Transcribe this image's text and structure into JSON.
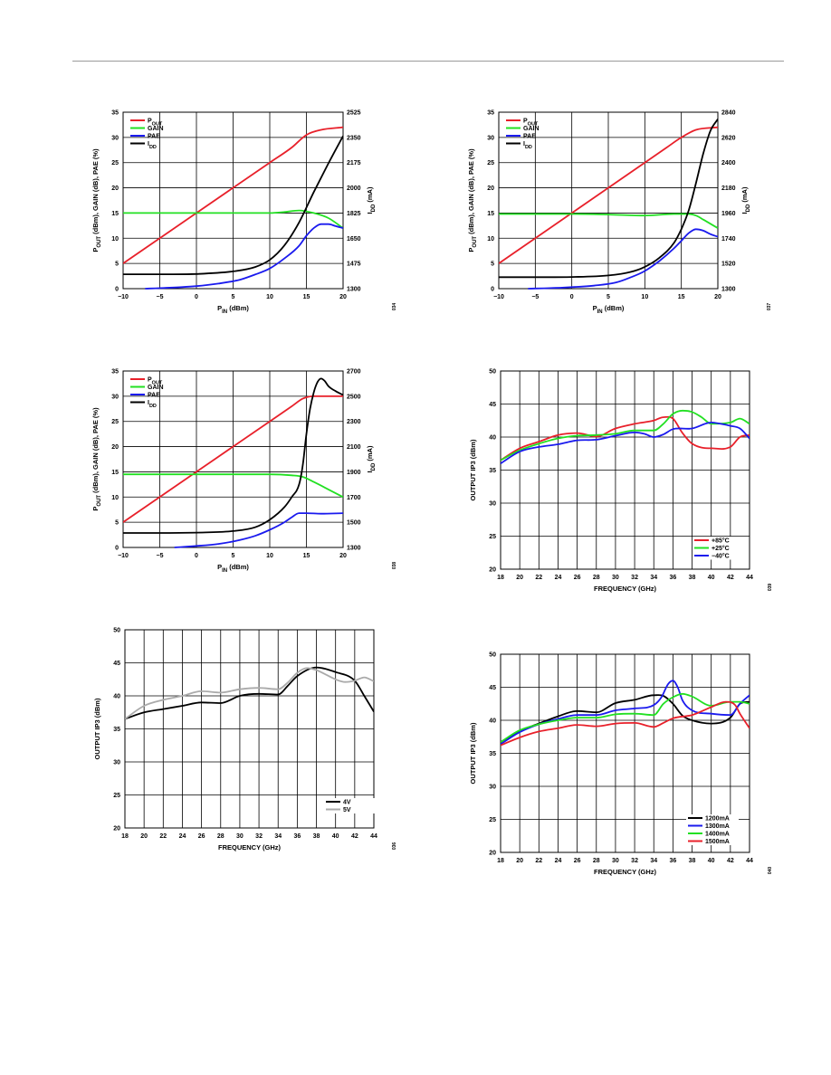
{
  "chart_data": [
    {
      "type": "line",
      "id": "c1",
      "title": "",
      "xlabel": "P_IN (dBm)",
      "ylabel": "P_OUT (dBm), GAIN (dB), PAE (%)",
      "ylabel2": "I_DD (mA)",
      "xlim": [
        -10,
        20
      ],
      "ylim": [
        0,
        35
      ],
      "ylim2": [
        1300,
        2525
      ],
      "x_ticks": [
        -10,
        -5,
        0,
        5,
        10,
        15,
        20
      ],
      "x_tick_labels": [
        "−10",
        "−5",
        "0",
        "5",
        "10",
        "15",
        "20"
      ],
      "y_ticks": [
        0,
        5,
        10,
        15,
        20,
        25,
        30,
        35
      ],
      "y_tick_labels": [
        "0",
        "5",
        "10",
        "15",
        "20",
        "25",
        "30",
        "35"
      ],
      "y2_ticks": [
        1300,
        1475,
        1650,
        1825,
        2000,
        2175,
        2350,
        2525
      ],
      "y2_tick_labels": [
        "1300",
        "1475",
        "1650",
        "1825",
        "2000",
        "2175",
        "2350",
        "2525"
      ],
      "grid": true,
      "legend_position": "top-left",
      "figure_id": "034",
      "series": [
        {
          "name": "POUT",
          "color": "#e8202a",
          "axis": "left",
          "x": [
            -10,
            0,
            10,
            13,
            15,
            17,
            20
          ],
          "y": [
            5,
            15,
            25,
            28,
            30.5,
            31.5,
            32
          ]
        },
        {
          "name": "GAIN",
          "color": "#22e022",
          "axis": "left",
          "x": [
            -10,
            0,
            10,
            12,
            14,
            16,
            18,
            20
          ],
          "y": [
            15,
            15,
            15,
            15.2,
            15.5,
            15,
            14,
            12
          ]
        },
        {
          "name": "PAE",
          "color": "#1a1aee",
          "axis": "left",
          "x": [
            -7,
            -5,
            -2,
            0,
            3,
            6,
            8,
            10,
            12,
            14,
            15,
            16,
            17,
            18,
            19,
            20
          ],
          "y": [
            0,
            0.1,
            0.3,
            0.5,
            1,
            1.8,
            2.8,
            4,
            6,
            8.5,
            10.5,
            12,
            12.8,
            12.8,
            12.4,
            12
          ]
        },
        {
          "name": "IDD",
          "color": "#000000",
          "axis": "right",
          "x": [
            -10,
            -5,
            0,
            5,
            8,
            10,
            12,
            14,
            16,
            18,
            20
          ],
          "y": [
            1400,
            1400,
            1402,
            1420,
            1450,
            1500,
            1600,
            1760,
            1970,
            2170,
            2360
          ]
        }
      ]
    },
    {
      "type": "line",
      "id": "c2",
      "title": "",
      "xlabel": "P_IN (dBm)",
      "ylabel": "P_OUT (dBm), GAIN (dB), PAE (%)",
      "ylabel2": "I_DD (mA)",
      "xlim": [
        -10,
        20
      ],
      "ylim": [
        0,
        35
      ],
      "ylim2": [
        1300,
        2840
      ],
      "x_ticks": [
        -10,
        -5,
        0,
        5,
        10,
        15,
        20
      ],
      "x_tick_labels": [
        "−10",
        "−5",
        "0",
        "5",
        "10",
        "15",
        "20"
      ],
      "y_ticks": [
        0,
        5,
        10,
        15,
        20,
        25,
        30,
        35
      ],
      "y_tick_labels": [
        "0",
        "5",
        "10",
        "15",
        "20",
        "25",
        "30",
        "35"
      ],
      "y2_ticks": [
        1300,
        1520,
        1740,
        1960,
        2180,
        2400,
        2620,
        2840
      ],
      "y2_tick_labels": [
        "1300",
        "1520",
        "1740",
        "1960",
        "2180",
        "2400",
        "2620",
        "2840"
      ],
      "grid": true,
      "legend_position": "top-left",
      "figure_id": "037",
      "series": [
        {
          "name": "POUT",
          "color": "#e8202a",
          "axis": "left",
          "x": [
            -10,
            0,
            10,
            13,
            15,
            17,
            20
          ],
          "y": [
            5,
            15,
            25,
            28,
            30,
            31.5,
            32
          ]
        },
        {
          "name": "GAIN",
          "color": "#22e022",
          "axis": "left",
          "x": [
            -10,
            0,
            5,
            10,
            14,
            16,
            17,
            18,
            20
          ],
          "y": [
            14.8,
            14.8,
            14.7,
            14.5,
            14.8,
            14.8,
            14.5,
            13.7,
            12
          ]
        },
        {
          "name": "PAE",
          "color": "#1a1aee",
          "axis": "left",
          "x": [
            -6,
            -3,
            0,
            3,
            6,
            8,
            10,
            12,
            14,
            15,
            16,
            17,
            18,
            19,
            20
          ],
          "y": [
            0,
            0.1,
            0.3,
            0.6,
            1.2,
            2.2,
            3.5,
            5.5,
            8,
            9.5,
            11,
            11.8,
            11.5,
            10.8,
            10.3
          ]
        },
        {
          "name": "IDD",
          "color": "#000000",
          "axis": "right",
          "x": [
            -10,
            -5,
            0,
            5,
            8,
            10,
            12,
            14,
            15,
            16,
            17,
            18,
            19,
            20
          ],
          "y": [
            1400,
            1400,
            1402,
            1415,
            1445,
            1490,
            1570,
            1700,
            1820,
            1980,
            2220,
            2480,
            2680,
            2780
          ]
        }
      ]
    },
    {
      "type": "line",
      "id": "c3",
      "title": "",
      "xlabel": "P_IN (dBm)",
      "ylabel": "P_OUT (dBm), GAIN (dB), PAE (%)",
      "ylabel2": "I_DD (mA)",
      "xlim": [
        -10,
        20
      ],
      "ylim": [
        0,
        35
      ],
      "ylim2": [
        1300,
        2700
      ],
      "x_ticks": [
        -10,
        -5,
        0,
        5,
        10,
        15,
        20
      ],
      "x_tick_labels": [
        "−10",
        "−5",
        "0",
        "5",
        "10",
        "15",
        "20"
      ],
      "y_ticks": [
        0,
        5,
        10,
        15,
        20,
        25,
        30,
        35
      ],
      "y_tick_labels": [
        "0",
        "5",
        "10",
        "15",
        "20",
        "25",
        "30",
        "35"
      ],
      "y2_ticks": [
        1300,
        1500,
        1700,
        1900,
        2100,
        2300,
        2500,
        2700
      ],
      "y2_tick_labels": [
        "1300",
        "1500",
        "1700",
        "1900",
        "2100",
        "2300",
        "2500",
        "2700"
      ],
      "grid": true,
      "legend_position": "top-left",
      "figure_id": "038",
      "series": [
        {
          "name": "POUT",
          "color": "#e8202a",
          "axis": "left",
          "x": [
            -10,
            0,
            10,
            13,
            14.5,
            16,
            18,
            20
          ],
          "y": [
            5,
            15,
            25,
            28,
            29.5,
            30,
            30,
            30
          ]
        },
        {
          "name": "GAIN",
          "color": "#22e022",
          "axis": "left",
          "x": [
            -10,
            0,
            5,
            10,
            13,
            14.5,
            16,
            18,
            20
          ],
          "y": [
            14.5,
            14.5,
            14.5,
            14.5,
            14.3,
            14,
            13,
            11.5,
            10
          ]
        },
        {
          "name": "PAE",
          "color": "#1a1aee",
          "axis": "left",
          "x": [
            -3,
            0,
            3,
            6,
            8,
            10,
            12,
            13,
            14,
            15,
            17,
            20
          ],
          "y": [
            0,
            0.3,
            0.7,
            1.5,
            2.3,
            3.5,
            5,
            6,
            6.8,
            6.8,
            6.7,
            6.8
          ]
        },
        {
          "name": "IDD",
          "color": "#000000",
          "axis": "right",
          "x": [
            -10,
            -5,
            0,
            5,
            8,
            10,
            12,
            13,
            14,
            14.5,
            15,
            15.5,
            16,
            16.5,
            17,
            17.5,
            18,
            19,
            20
          ],
          "y": [
            1415,
            1415,
            1418,
            1430,
            1460,
            1520,
            1620,
            1700,
            1800,
            1950,
            2200,
            2400,
            2530,
            2610,
            2640,
            2620,
            2580,
            2540,
            2510
          ]
        }
      ]
    },
    {
      "type": "line",
      "id": "c4",
      "title": "",
      "xlabel": "FREQUENCY (GHz)",
      "ylabel": "OUTPUT IP3 (dBm)",
      "xlim": [
        18,
        44
      ],
      "ylim": [
        20,
        50
      ],
      "x_ticks": [
        18,
        20,
        22,
        24,
        26,
        28,
        30,
        32,
        34,
        36,
        38,
        40,
        42,
        44
      ],
      "x_tick_labels": [
        "18",
        "20",
        "22",
        "24",
        "26",
        "28",
        "30",
        "32",
        "34",
        "36",
        "38",
        "40",
        "42",
        "44"
      ],
      "y_ticks": [
        20,
        25,
        30,
        35,
        40,
        45,
        50
      ],
      "y_tick_labels": [
        "20",
        "25",
        "30",
        "35",
        "40",
        "45",
        "50"
      ],
      "grid": true,
      "legend_position": "bottom-right",
      "figure_id": "039",
      "series": [
        {
          "name": "+85°C",
          "color": "#e8202a",
          "x": [
            18,
            20,
            22,
            24,
            26,
            28,
            30,
            32,
            34,
            35,
            36,
            37,
            38,
            40,
            42,
            43,
            44
          ],
          "y": [
            36.5,
            38.3,
            39.3,
            40.3,
            40.6,
            40.1,
            41.3,
            42,
            42.5,
            43,
            42.8,
            40.6,
            39,
            38.3,
            38.5,
            40,
            40.3
          ]
        },
        {
          "name": "+25°C",
          "color": "#22e022",
          "x": [
            18,
            20,
            22,
            24,
            26,
            28,
            30,
            32,
            34,
            35,
            36,
            37,
            38,
            39,
            40,
            42,
            43,
            44
          ],
          "y": [
            36.5,
            38,
            39,
            39.8,
            40.2,
            40.3,
            40.5,
            41,
            41,
            42,
            43.5,
            44,
            43.8,
            43,
            42,
            42.2,
            42.8,
            42
          ]
        },
        {
          "name": "−40°C",
          "color": "#1a1aee",
          "x": [
            18,
            20,
            22,
            24,
            26,
            28,
            30,
            32,
            33,
            34,
            35,
            36,
            38,
            40,
            41,
            42,
            43,
            44
          ],
          "y": [
            36,
            37.8,
            38.5,
            38.9,
            39.5,
            39.6,
            40.2,
            40.7,
            40.5,
            40,
            40.4,
            41.2,
            41.3,
            42.2,
            42,
            41.7,
            41.3,
            39.8
          ]
        }
      ]
    },
    {
      "type": "line",
      "id": "c5",
      "title": "",
      "xlabel": "FREQUENCY (GHz)",
      "ylabel": "OUTPUT IP3 (dBm)",
      "xlim": [
        18,
        44
      ],
      "ylim": [
        20,
        50
      ],
      "x_ticks": [
        18,
        20,
        22,
        24,
        26,
        28,
        30,
        32,
        34,
        36,
        38,
        40,
        42,
        44
      ],
      "x_tick_labels": [
        "18",
        "20",
        "22",
        "24",
        "26",
        "28",
        "30",
        "32",
        "34",
        "36",
        "38",
        "40",
        "42",
        "44"
      ],
      "y_ticks": [
        20,
        25,
        30,
        35,
        40,
        45,
        50
      ],
      "y_tick_labels": [
        "20",
        "25",
        "30",
        "35",
        "40",
        "45",
        "50"
      ],
      "grid": true,
      "legend_position": "bottom-right",
      "figure_id": "036",
      "series": [
        {
          "name": "4V",
          "color": "#000000",
          "x": [
            18,
            20,
            22,
            24,
            26,
            28,
            30,
            32,
            34,
            35,
            36,
            38,
            40,
            42,
            43,
            44
          ],
          "y": [
            36.5,
            37.5,
            38,
            38.5,
            39,
            38.9,
            40,
            40.3,
            40.2,
            41.5,
            43,
            44.3,
            43.6,
            42.3,
            40,
            37.6
          ]
        },
        {
          "name": "5V",
          "color": "#aaaaaa",
          "x": [
            18,
            20,
            22,
            24,
            26,
            28,
            30,
            32,
            34,
            35,
            36,
            37,
            38,
            39,
            40,
            41,
            42,
            43,
            44
          ],
          "y": [
            36.5,
            38.5,
            39.4,
            40,
            40.7,
            40.5,
            41,
            41.2,
            41,
            42,
            43.5,
            44.2,
            43.9,
            43.2,
            42.5,
            42.1,
            42.3,
            42.8,
            42.2
          ]
        }
      ]
    },
    {
      "type": "line",
      "id": "c6",
      "title": "",
      "xlabel": "FREQUENCY (GHz)",
      "ylabel": "OUTPUT IP3 (dBm)",
      "xlim": [
        18,
        44
      ],
      "ylim": [
        20,
        50
      ],
      "x_ticks": [
        18,
        20,
        22,
        24,
        26,
        28,
        30,
        32,
        34,
        36,
        38,
        40,
        42,
        44
      ],
      "x_tick_labels": [
        "18",
        "20",
        "22",
        "24",
        "26",
        "28",
        "30",
        "32",
        "34",
        "36",
        "38",
        "40",
        "42",
        "44"
      ],
      "y_ticks": [
        20,
        25,
        30,
        35,
        40,
        45,
        50
      ],
      "y_tick_labels": [
        "20",
        "25",
        "30",
        "35",
        "40",
        "45",
        "50"
      ],
      "grid": true,
      "legend_position": "bottom-right",
      "figure_id": "040",
      "series": [
        {
          "name": "1200mA",
          "color": "#000000",
          "x": [
            18,
            20,
            22,
            24,
            26,
            28,
            30,
            32,
            34,
            35,
            36,
            37,
            38,
            40,
            42,
            43,
            44
          ],
          "y": [
            36.7,
            38.4,
            39.5,
            40.6,
            41.4,
            41.2,
            42.6,
            43.1,
            43.8,
            43.7,
            42.5,
            40.7,
            40,
            39.5,
            40.4,
            42.5,
            42.8
          ]
        },
        {
          "name": "1300mA",
          "color": "#1a1aee",
          "x": [
            18,
            20,
            22,
            24,
            26,
            28,
            30,
            32,
            34,
            34.8,
            35.5,
            36,
            36.5,
            37,
            38,
            40,
            42,
            43,
            44
          ],
          "y": [
            36.4,
            38.2,
            39.4,
            40.2,
            40.8,
            40.8,
            41.5,
            41.8,
            42.3,
            43.5,
            45.5,
            46,
            45,
            43,
            41.5,
            41,
            40.8,
            42.5,
            43.8
          ]
        },
        {
          "name": "1400mA",
          "color": "#22e022",
          "x": [
            18,
            20,
            22,
            24,
            26,
            28,
            30,
            32,
            34,
            35,
            36,
            37,
            38,
            40,
            42,
            43,
            44
          ],
          "y": [
            36.7,
            38.5,
            39.4,
            40,
            40.4,
            40.4,
            40.9,
            41,
            40.8,
            42.5,
            43.5,
            44,
            43.6,
            42.2,
            42.8,
            42.8,
            42.5
          ]
        },
        {
          "name": "1500mA",
          "color": "#e8202a",
          "x": [
            18,
            20,
            22,
            24,
            26,
            28,
            30,
            32,
            34,
            35,
            36,
            38,
            40,
            41.5,
            42.5,
            43,
            44
          ],
          "y": [
            36.2,
            37.4,
            38.3,
            38.8,
            39.3,
            39.1,
            39.5,
            39.6,
            39.0,
            39.6,
            40.3,
            40.8,
            42,
            42.8,
            42.3,
            41,
            38.8
          ]
        }
      ]
    }
  ]
}
